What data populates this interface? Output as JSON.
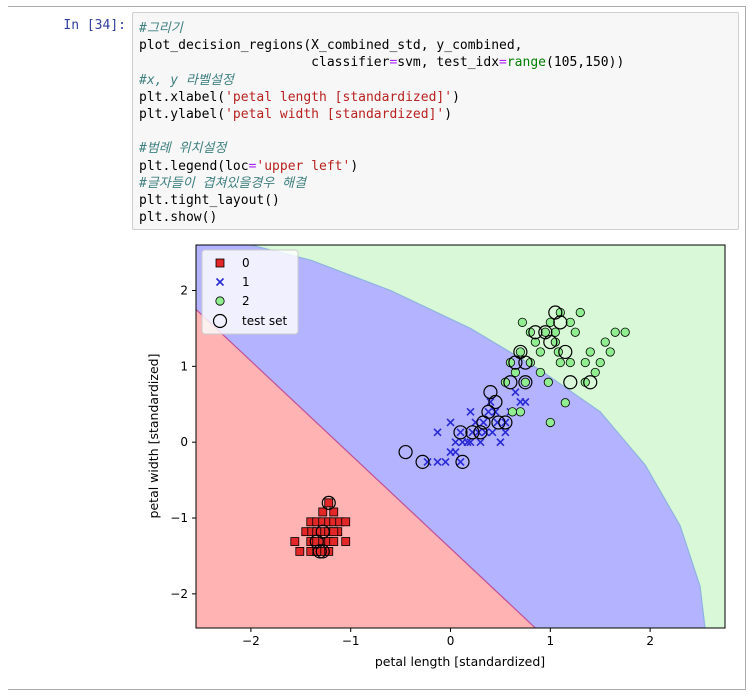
{
  "cell": {
    "prompt": "In [34]:",
    "code_lines": [
      [
        {
          "t": "#그리기",
          "c": "cm"
        }
      ],
      [
        {
          "t": "plot_decision_regions(X_combined_std, y_combined,"
        }
      ],
      [
        {
          "t": "                      classifier"
        },
        {
          "t": "=",
          "c": "op"
        },
        {
          "t": "svm, test_idx"
        },
        {
          "t": "=",
          "c": "op"
        },
        {
          "t": "range",
          "c": "bi"
        },
        {
          "t": "(105,150))"
        }
      ],
      [
        {
          "t": "#x, y 라벨설정",
          "c": "cm"
        }
      ],
      [
        {
          "t": "plt.xlabel("
        },
        {
          "t": "'petal length [standardized]'",
          "c": "st"
        },
        {
          "t": ")"
        }
      ],
      [
        {
          "t": "plt.ylabel("
        },
        {
          "t": "'petal width [standardized]'",
          "c": "st"
        },
        {
          "t": ")"
        }
      ],
      [
        {
          "t": ""
        }
      ],
      [
        {
          "t": "#범례 위치설정",
          "c": "cm"
        }
      ],
      [
        {
          "t": "plt.legend(loc"
        },
        {
          "t": "=",
          "c": "op"
        },
        {
          "t": "'upper left'",
          "c": "st"
        },
        {
          "t": ")"
        }
      ],
      [
        {
          "t": "#글자들이 겹쳐있을경우 해결",
          "c": "cm"
        }
      ],
      [
        {
          "t": "plt.tight_layout()"
        }
      ],
      [
        {
          "t": "plt.show()"
        }
      ]
    ]
  },
  "chart_data": {
    "type": "scatter",
    "xlabel": "petal length [standardized]",
    "ylabel": "petal width [standardized]",
    "xlim": [
      -2.55,
      2.75
    ],
    "ylim": [
      -2.45,
      2.6
    ],
    "xticks": [
      -2,
      -1,
      0,
      1,
      2
    ],
    "yticks": [
      -2,
      -1,
      0,
      1,
      2
    ],
    "grid": false,
    "legend_position": "upper-left",
    "legend": [
      "0",
      "1",
      "2",
      "test set"
    ],
    "region_colors": {
      "0": "#ffb3b3",
      "1": "#b3b3ff",
      "2": "#d8f8d8"
    },
    "regions": {
      "boundary_0_1": [
        [
          -2.55,
          1.75
        ],
        [
          0.85,
          -2.45
        ]
      ],
      "boundary_1_2": [
        [
          -2.0,
          2.6
        ],
        [
          -1.4,
          2.4
        ],
        [
          -0.6,
          2.0
        ],
        [
          0.2,
          1.5
        ],
        [
          0.9,
          0.95
        ],
        [
          1.5,
          0.4
        ],
        [
          1.95,
          -0.3
        ],
        [
          2.3,
          -1.1
        ],
        [
          2.5,
          -1.9
        ],
        [
          2.55,
          -2.45
        ]
      ]
    },
    "series": [
      {
        "name": "0",
        "marker": "square",
        "color": "#e32626",
        "points": [
          [
            -1.56,
            -1.31
          ],
          [
            -1.51,
            -1.44
          ],
          [
            -1.45,
            -1.18
          ],
          [
            -1.4,
            -1.05
          ],
          [
            -1.4,
            -1.31
          ],
          [
            -1.39,
            -1.18
          ],
          [
            -1.34,
            -1.05
          ],
          [
            -1.34,
            -1.31
          ],
          [
            -1.34,
            -1.44
          ],
          [
            -1.28,
            -1.05
          ],
          [
            -1.28,
            -1.18
          ],
          [
            -1.28,
            -1.31
          ],
          [
            -1.28,
            -1.44
          ],
          [
            -1.22,
            -1.05
          ],
          [
            -1.22,
            -1.18
          ],
          [
            -1.22,
            -1.31
          ],
          [
            -1.17,
            -1.05
          ],
          [
            -1.17,
            -0.92
          ],
          [
            -1.17,
            -1.31
          ],
          [
            -1.13,
            -1.18
          ],
          [
            -1.11,
            -1.05
          ],
          [
            -1.05,
            -1.31
          ],
          [
            -1.05,
            -1.05
          ],
          [
            -1.22,
            -0.8
          ],
          [
            -1.4,
            -1.44
          ],
          [
            -1.34,
            -1.18
          ],
          [
            -1.22,
            -1.44
          ],
          [
            -1.28,
            -0.92
          ],
          [
            -1.17,
            -1.18
          ],
          [
            -1.34,
            -1.44
          ]
        ]
      },
      {
        "name": "1",
        "marker": "x",
        "color": "#2b2bd6",
        "points": [
          [
            -0.23,
            -0.26
          ],
          [
            -0.13,
            -0.26
          ],
          [
            -0.05,
            -0.26
          ],
          [
            0.0,
            -0.13
          ],
          [
            0.05,
            -0.13
          ],
          [
            0.1,
            -0.26
          ],
          [
            0.12,
            0.0
          ],
          [
            0.17,
            0.0
          ],
          [
            0.22,
            0.13
          ],
          [
            0.28,
            0.13
          ],
          [
            0.33,
            0.26
          ],
          [
            0.38,
            0.4
          ],
          [
            0.42,
            0.13
          ],
          [
            0.47,
            0.26
          ],
          [
            0.5,
            0.0
          ],
          [
            0.55,
            0.26
          ],
          [
            0.6,
            0.4
          ],
          [
            0.65,
            0.66
          ],
          [
            0.7,
            0.53
          ],
          [
            0.0,
            0.26
          ],
          [
            0.1,
            0.13
          ],
          [
            0.2,
            0.4
          ],
          [
            0.3,
            0.0
          ],
          [
            0.4,
            0.53
          ],
          [
            0.55,
            0.13
          ],
          [
            0.65,
            0.4
          ],
          [
            -0.13,
            0.13
          ],
          [
            0.05,
            0.0
          ],
          [
            0.25,
            0.26
          ],
          [
            0.45,
            0.4
          ],
          [
            0.35,
            0.13
          ],
          [
            0.2,
            0.0
          ],
          [
            0.75,
            0.53
          ]
        ]
      },
      {
        "name": "2",
        "marker": "circle",
        "color": "#90ee90",
        "points": [
          [
            0.55,
            0.79
          ],
          [
            0.6,
            1.05
          ],
          [
            0.65,
            0.92
          ],
          [
            0.7,
            1.19
          ],
          [
            0.72,
            1.58
          ],
          [
            0.75,
            0.79
          ],
          [
            0.8,
            1.45
          ],
          [
            0.85,
            1.32
          ],
          [
            0.9,
            1.19
          ],
          [
            0.95,
            1.45
          ],
          [
            0.98,
            0.79
          ],
          [
            1.0,
            1.58
          ],
          [
            1.05,
            1.32
          ],
          [
            1.08,
            1.19
          ],
          [
            1.1,
            1.71
          ],
          [
            1.15,
            0.52
          ],
          [
            1.2,
            1.05
          ],
          [
            1.25,
            1.45
          ],
          [
            1.3,
            1.71
          ],
          [
            1.35,
            0.79
          ],
          [
            1.4,
            1.19
          ],
          [
            1.45,
            0.92
          ],
          [
            1.5,
            1.05
          ],
          [
            1.55,
            1.32
          ],
          [
            1.6,
            1.19
          ],
          [
            1.65,
            1.45
          ],
          [
            1.75,
            1.45
          ],
          [
            1.0,
            0.26
          ],
          [
            0.7,
            0.4
          ],
          [
            0.9,
            0.92
          ],
          [
            1.1,
            1.05
          ],
          [
            1.2,
            1.58
          ],
          [
            0.8,
            1.05
          ],
          [
            1.35,
            1.05
          ],
          [
            0.62,
            0.4
          ],
          [
            1.05,
            1.45
          ]
        ]
      }
    ],
    "test_set": [
      [
        -0.45,
        -0.13
      ],
      [
        -0.28,
        -0.26
      ],
      [
        0.1,
        0.13
      ],
      [
        0.12,
        -0.26
      ],
      [
        0.22,
        0.13
      ],
      [
        0.33,
        0.26
      ],
      [
        0.38,
        0.4
      ],
      [
        0.45,
        0.53
      ],
      [
        0.48,
        0.26
      ],
      [
        0.4,
        0.66
      ],
      [
        0.6,
        0.79
      ],
      [
        0.65,
        1.05
      ],
      [
        0.75,
        1.05
      ],
      [
        0.7,
        1.19
      ],
      [
        0.85,
        1.45
      ],
      [
        0.95,
        1.45
      ],
      [
        1.0,
        1.32
      ],
      [
        1.05,
        1.71
      ],
      [
        1.15,
        1.19
      ],
      [
        1.2,
        0.79
      ],
      [
        1.4,
        0.79
      ],
      [
        0.55,
        0.26
      ],
      [
        -1.22,
        -0.8
      ],
      [
        -1.28,
        -1.18
      ],
      [
        -1.34,
        -1.31
      ],
      [
        -1.31,
        -1.44
      ],
      [
        -1.28,
        -1.44
      ],
      [
        0.3,
        0.13
      ],
      [
        0.75,
        0.79
      ],
      [
        1.1,
        1.58
      ]
    ]
  }
}
